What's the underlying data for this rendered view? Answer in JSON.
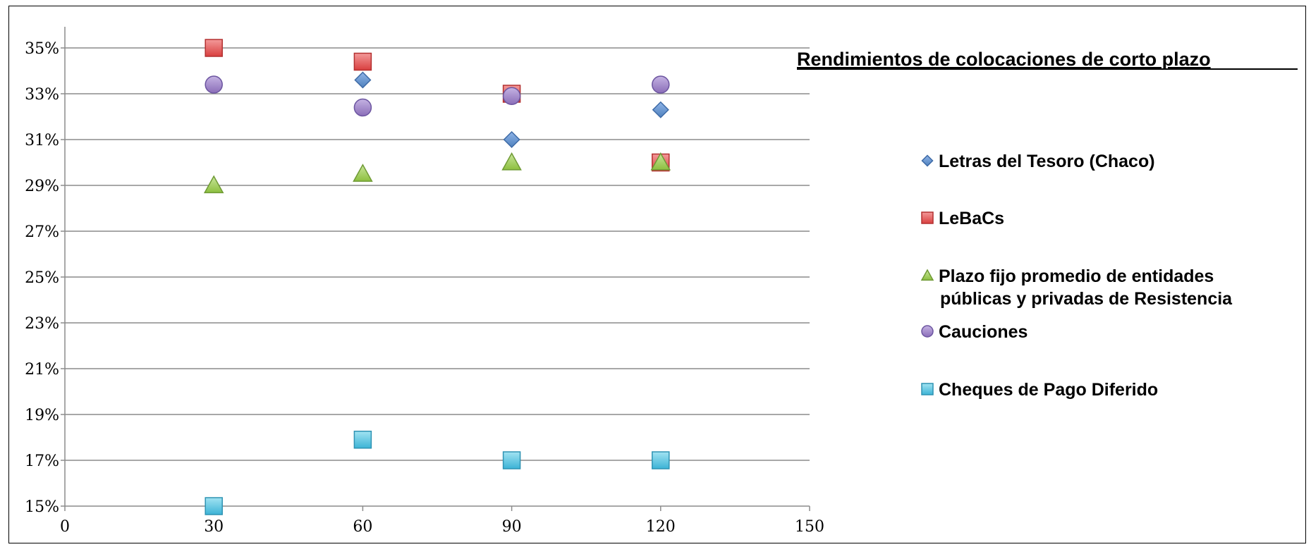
{
  "chart_data": {
    "type": "scatter",
    "title": "Rendimientos de colocaciones de corto plazo",
    "xlim": [
      0,
      150
    ],
    "ylim": [
      15,
      35
    ],
    "x_ticks": [
      0,
      30,
      60,
      90,
      120,
      150
    ],
    "x_tick_labels": [
      "0",
      "30",
      "60",
      "90",
      "120",
      "150"
    ],
    "y_ticks": [
      15,
      17,
      19,
      21,
      23,
      25,
      27,
      29,
      31,
      33,
      35
    ],
    "y_tick_labels": [
      "15%",
      "17%",
      "19%",
      "21%",
      "23%",
      "25%",
      "27%",
      "29%",
      "31%",
      "33%",
      "35%"
    ],
    "grid": "horizontal",
    "legend_position": "right",
    "series": [
      {
        "name": "Letras del Tesoro (Chaco)",
        "marker": "diamond",
        "color": "#4f81bd",
        "points": [
          [
            60,
            33.6
          ],
          [
            90,
            31.0
          ],
          [
            120,
            32.3
          ]
        ]
      },
      {
        "name": "LeBaCs",
        "marker": "square",
        "color": "#e04848",
        "points": [
          [
            30,
            35.0
          ],
          [
            60,
            34.4
          ],
          [
            90,
            33.0
          ],
          [
            120,
            30.0
          ]
        ]
      },
      {
        "name": "Plazo fijo promedio de entidades públicas y privadas de Resistencia",
        "legend_lines": [
          "Plazo fijo promedio de entidades",
          "públicas y privadas de Resistencia"
        ],
        "marker": "triangle",
        "color": "#9bc953",
        "points": [
          [
            30,
            29.0
          ],
          [
            60,
            29.5
          ],
          [
            90,
            30.0
          ],
          [
            120,
            30.0
          ]
        ]
      },
      {
        "name": "Cauciones",
        "marker": "circle",
        "color": "#9a80c4",
        "points": [
          [
            30,
            33.4
          ],
          [
            60,
            32.4
          ],
          [
            90,
            32.9
          ],
          [
            120,
            33.4
          ]
        ]
      },
      {
        "name": "Cheques de Pago Diferido",
        "marker": "square",
        "color": "#4fc1df",
        "points": [
          [
            30,
            15.0
          ],
          [
            60,
            17.9
          ],
          [
            90,
            17.0
          ],
          [
            120,
            17.0
          ]
        ]
      }
    ]
  }
}
